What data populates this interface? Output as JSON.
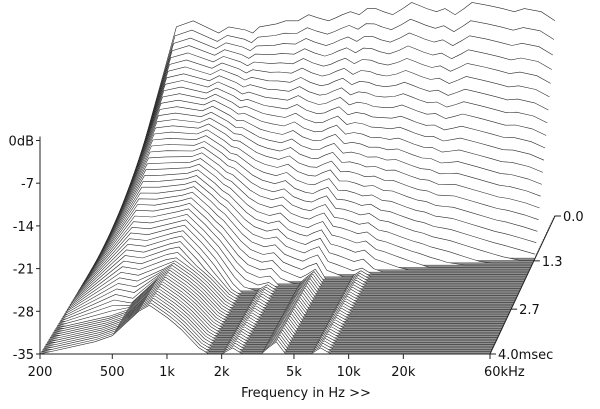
{
  "chart_data": {
    "type": "waterfall",
    "title": "",
    "xlabel": "Frequency in Hz >>",
    "ylabel": "",
    "zlabel": "",
    "x_scale": "log",
    "x_range_hz": [
      200,
      60000
    ],
    "x_ticks": [
      {
        "value": 200,
        "label": "200"
      },
      {
        "value": 500,
        "label": "500"
      },
      {
        "value": 1000,
        "label": "1k"
      },
      {
        "value": 2000,
        "label": "2k"
      },
      {
        "value": 5000,
        "label": "5k"
      },
      {
        "value": 10000,
        "label": "10k"
      },
      {
        "value": 20000,
        "label": "20k"
      },
      {
        "value": 60000,
        "label": "60kHz"
      }
    ],
    "y_range_db": [
      -35,
      0
    ],
    "y_ticks": [
      {
        "value": 0,
        "label": "0dB"
      },
      {
        "value": -7,
        "label": "-7"
      },
      {
        "value": -14,
        "label": "-14"
      },
      {
        "value": -21,
        "label": "-21"
      },
      {
        "value": -28,
        "label": "-28"
      },
      {
        "value": -35,
        "label": "-35"
      }
    ],
    "time_range_ms": [
      0,
      4.0
    ],
    "time_ticks": [
      {
        "value": 0.0,
        "label": "0.0"
      },
      {
        "value": 1.3,
        "label": "1.3"
      },
      {
        "value": 2.7,
        "label": "2.7"
      },
      {
        "value": 4.0,
        "label": "4.0msec"
      }
    ],
    "slice_count": 60,
    "frequency_points_hz": [
      200,
      400,
      500,
      700,
      800,
      1000,
      1100,
      1200,
      1500,
      1700,
      2000,
      2300,
      2600,
      3000,
      3300,
      3600,
      4000,
      4500,
      5000,
      5600,
      6200,
      7000,
      8000,
      9000,
      10000,
      11000,
      12500,
      14000,
      16000,
      18000,
      20000,
      25000,
      30000,
      35000,
      40000,
      50000,
      60000
    ],
    "initial_response_db": [
      -35,
      -4,
      -3,
      -5,
      -4,
      -4.5,
      -5,
      -4,
      -3.5,
      -3,
      -3,
      -2,
      -2.5,
      -3,
      -2.5,
      -2,
      -1.5,
      -2,
      -1,
      -1,
      -1.5,
      -2,
      -1,
      0,
      -0.5,
      -1,
      -1.5,
      -1,
      -2,
      -1,
      0,
      -0.5,
      -1,
      -1.5,
      -1,
      -1.5,
      -3
    ],
    "decayed_response_db": [
      -35,
      -33,
      -32,
      -28,
      -27,
      -29,
      -30,
      -31,
      -34,
      -35,
      -35,
      -34,
      -35,
      -35,
      -35,
      -34,
      -33,
      -35,
      -35,
      -35,
      -35,
      -34,
      -35,
      -35,
      -35,
      -35,
      -35,
      -35,
      -35,
      -35,
      -35,
      -35,
      -35,
      -35,
      -35,
      -35,
      -35
    ],
    "colors": {
      "ridge_line": "#2a2a2a",
      "surface_fill": "#ffffff",
      "floor_fill": "#8f8f8f",
      "floor_lines": "#4a4a4a",
      "axis": "#222222"
    }
  }
}
